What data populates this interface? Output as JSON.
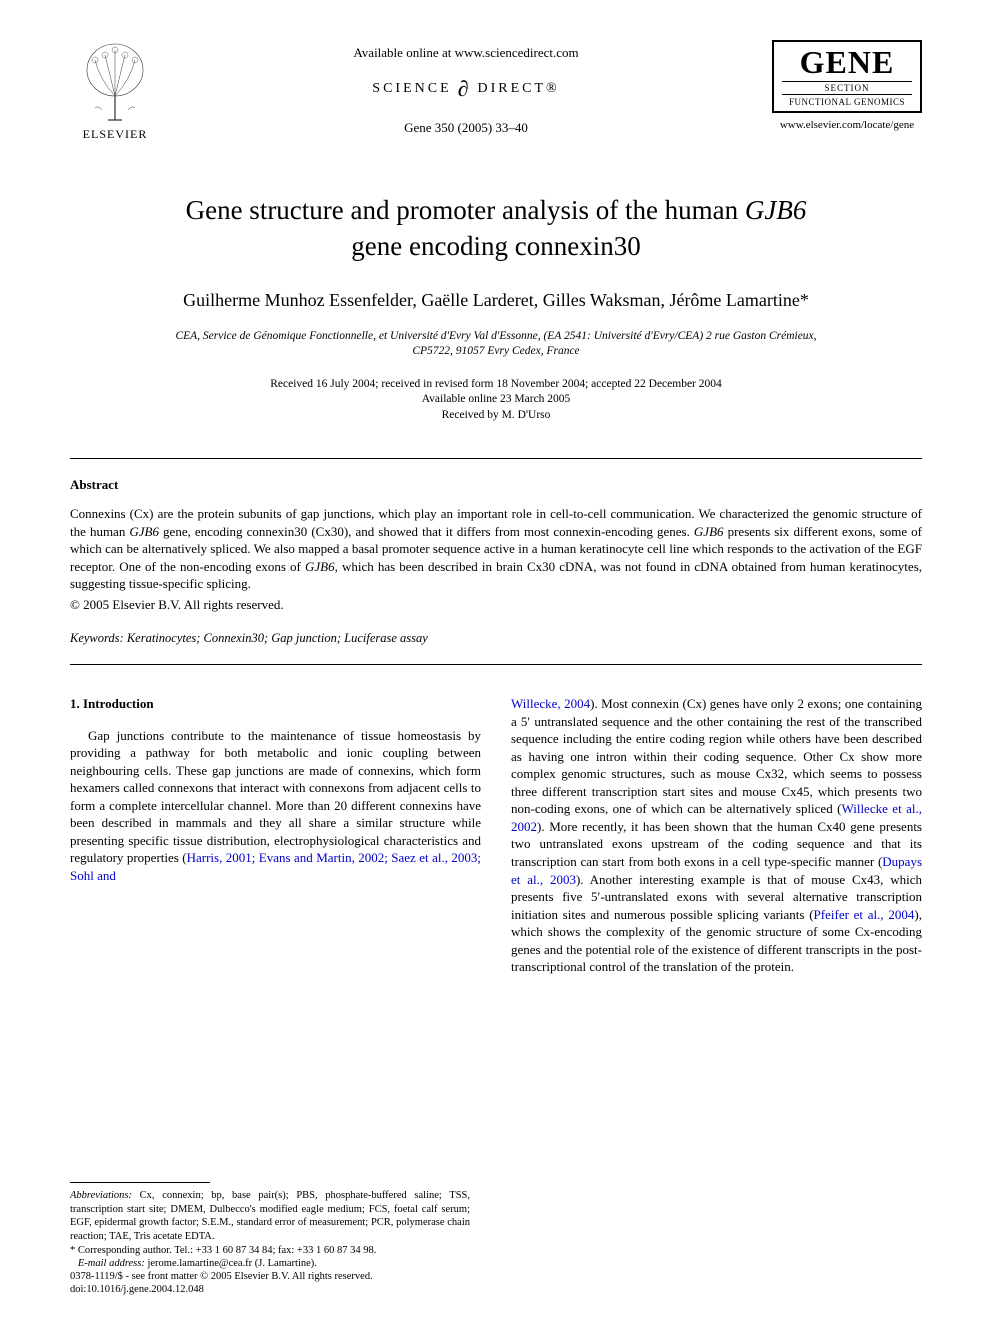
{
  "header": {
    "elsevier_label": "ELSEVIER",
    "available_online": "Available online at www.sciencedirect.com",
    "science_left": "SCIENCE",
    "science_right": "DIRECT®",
    "citation": "Gene 350 (2005) 33–40",
    "gene_logo": {
      "title": "GENE",
      "section": "SECTION",
      "subtitle": "FUNCTIONAL GENOMICS"
    },
    "journal_url": "www.elsevier.com/locate/gene"
  },
  "title": {
    "line1_pre": "Gene structure and promoter analysis of the human ",
    "line1_italic": "GJB6",
    "line2": "gene encoding connexin30"
  },
  "authors": "Guilherme Munhoz Essenfelder, Gaëlle Larderet, Gilles Waksman, Jérôme Lamartine*",
  "affiliation": {
    "line1": "CEA, Service de Génomique Fonctionnelle, et Université d'Evry Val d'Essonne, (EA 2541: Université d'Evry/CEA) 2 rue Gaston Crémieux,",
    "line2": "CP5722, 91057 Evry Cedex, France"
  },
  "dates": {
    "line1": "Received 16 July 2004; received in revised form 18 November 2004; accepted 22 December 2004",
    "line2": "Available online 23 March 2005",
    "line3": "Received by M. D'Urso"
  },
  "abstract": {
    "heading": "Abstract",
    "text_parts": [
      {
        "t": "Connexins (Cx) are the protein subunits of gap junctions, which play an important role in cell-to-cell communication. We characterized the genomic structure of the human ",
        "italic": false
      },
      {
        "t": "GJB6",
        "italic": true
      },
      {
        "t": " gene, encoding connexin30 (Cx30), and showed that it differs from most connexin-encoding genes. ",
        "italic": false
      },
      {
        "t": "GJB6",
        "italic": true
      },
      {
        "t": " presents six different exons, some of which can be alternatively spliced. We also mapped a basal promoter sequence active in a human keratinocyte cell line which responds to the activation of the EGF receptor. One of the non-encoding exons of ",
        "italic": false
      },
      {
        "t": "GJB6",
        "italic": true
      },
      {
        "t": ", which has been described in brain Cx30 cDNA, was not found in cDNA obtained from human keratinocytes, suggesting tissue-specific splicing.",
        "italic": false
      }
    ],
    "copyright": "© 2005 Elsevier B.V. All rights reserved."
  },
  "keywords": {
    "label": "Keywords:",
    "text": " Keratinocytes; Connexin30; Gap junction; Luciferase assay"
  },
  "intro": {
    "heading": "1. Introduction",
    "left_text_pre": "Gap junctions contribute to the maintenance of tissue homeostasis by providing a pathway for both metabolic and ionic coupling between neighbouring cells. These gap junctions are made of connexins, which form hexamers called connexons that interact with connexons from adjacent cells to form a complete intercellular channel. More than 20 different connexins have been described in mammals and they all share a similar structure while presenting specific tissue distribution, electrophysiological characteristics and regulatory properties (",
    "left_cite": "Harris, 2001; Evans and Martin, 2002; Saez et al., 2003; Sohl and",
    "right_cite1": "Willecke, 2004",
    "right_text1": "). Most connexin (Cx) genes have only 2 exons; one containing a 5′ untranslated sequence and the other containing the rest of the transcribed sequence including the entire coding region while others have been described as having one intron within their coding sequence. Other Cx show more complex genomic structures, such as mouse Cx32, which seems to possess three different transcription start sites and mouse Cx45, which presents two non-coding exons, one of which can be alternatively spliced (",
    "right_cite2": "Willecke et al., 2002",
    "right_text2": "). More recently, it has been shown that the human Cx40 gene presents two untranslated exons upstream of the coding sequence and that its transcription can start from both exons in a cell type-specific manner (",
    "right_cite3": "Dupays et al., 2003",
    "right_text3": "). Another interesting example is that of mouse Cx43, which presents five 5′-untranslated exons with several alternative transcription initiation sites and numerous possible splicing variants (",
    "right_cite4": "Pfeifer et al., 2004",
    "right_text4": "), which shows the complexity of the genomic structure of some Cx-encoding genes and the potential role of the existence of different transcripts in the post-transcriptional control of the translation of the protein."
  },
  "footnotes": {
    "abbrev_label": "Abbreviations:",
    "abbrev_text": " Cx, connexin; bp, base pair(s); PBS, phosphate-buffered saline; TSS, transcription start site; DMEM, Dulbecco's modified eagle medium; FCS, foetal calf serum; EGF, epidermal growth factor; S.E.M., standard error of measurement; PCR, polymerase chain reaction; TAE, Tris acetate EDTA.",
    "corr": "* Corresponding author. Tel.: +33 1 60 87 34 84; fax: +33 1 60 87 34 98.",
    "email_label": "E-mail address:",
    "email_value": " jerome.lamartine@cea.fr (J. Lamartine)."
  },
  "bottom": {
    "line1": "0378-1119/$ - see front matter © 2005 Elsevier B.V. All rights reserved.",
    "line2": "doi:10.1016/j.gene.2004.12.048"
  },
  "colors": {
    "text": "#000000",
    "link": "#0000cc",
    "background": "#ffffff"
  },
  "fonts": {
    "body_family": "Times New Roman, serif",
    "title_size_pt": 20,
    "author_size_pt": 14,
    "body_size_pt": 10,
    "footnote_size_pt": 8
  }
}
